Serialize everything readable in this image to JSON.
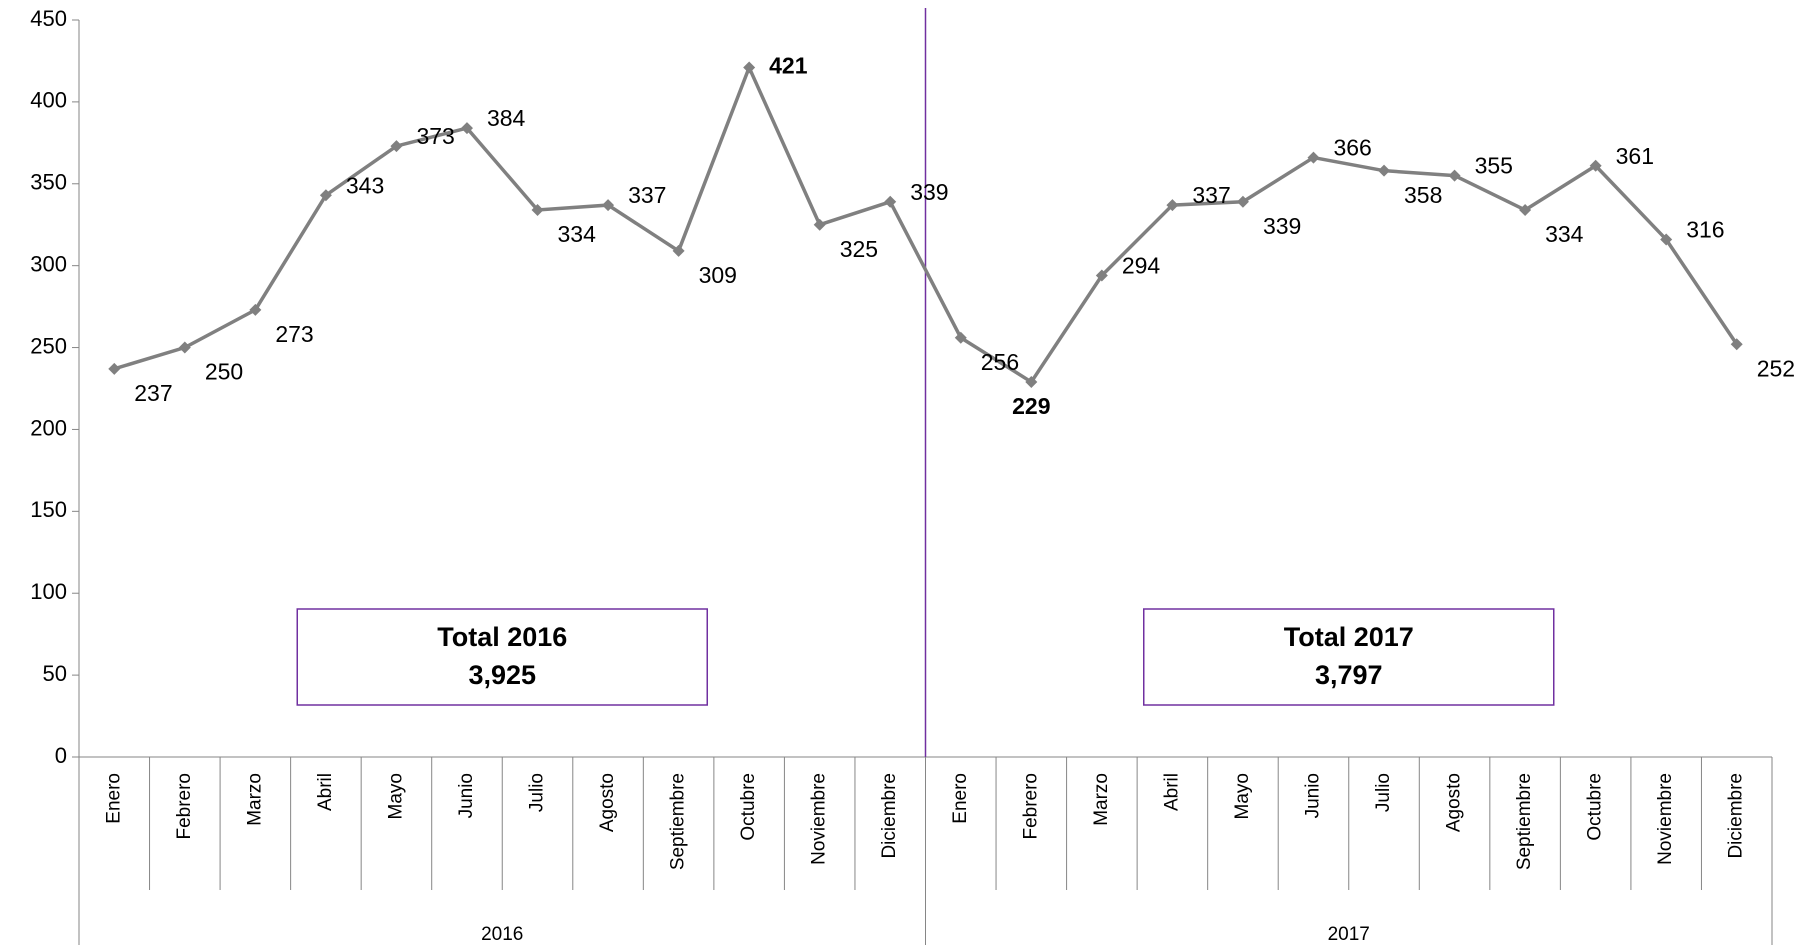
{
  "chart_data": {
    "type": "line",
    "categories": [
      "Enero",
      "Febrero",
      "Marzo",
      "Abril",
      "Mayo",
      "Junio",
      "Julio",
      "Agosto",
      "Septiembre",
      "Octubre",
      "Noviembre",
      "Diciembre",
      "Enero",
      "Febrero",
      "Marzo",
      "Abril",
      "Mayo",
      "Junio",
      "Julio",
      "Agosto",
      "Septiembre",
      "Octubre",
      "Noviembre",
      "Diciembre"
    ],
    "groups": [
      {
        "name": "2016",
        "size": 12,
        "total_title": "Total 2016",
        "total": 3925,
        "total_label": "3,925"
      },
      {
        "name": "2017",
        "size": 12,
        "total_title": "Total 2017",
        "total": 3797,
        "total_label": "3,797"
      }
    ],
    "series": [
      {
        "name": "Total",
        "color": "#808080",
        "values": [
          237,
          250,
          273,
          343,
          373,
          384,
          334,
          337,
          309,
          421,
          325,
          339,
          256,
          229,
          294,
          337,
          339,
          366,
          358,
          355,
          334,
          361,
          316,
          252
        ]
      }
    ],
    "max_color": "#ff0000",
    "min_color": "#00b050",
    "divider_color": "#7030a0",
    "ylim": [
      0,
      450
    ],
    "yticks": [
      0,
      50,
      100,
      150,
      200,
      250,
      300,
      350,
      400,
      450
    ]
  }
}
